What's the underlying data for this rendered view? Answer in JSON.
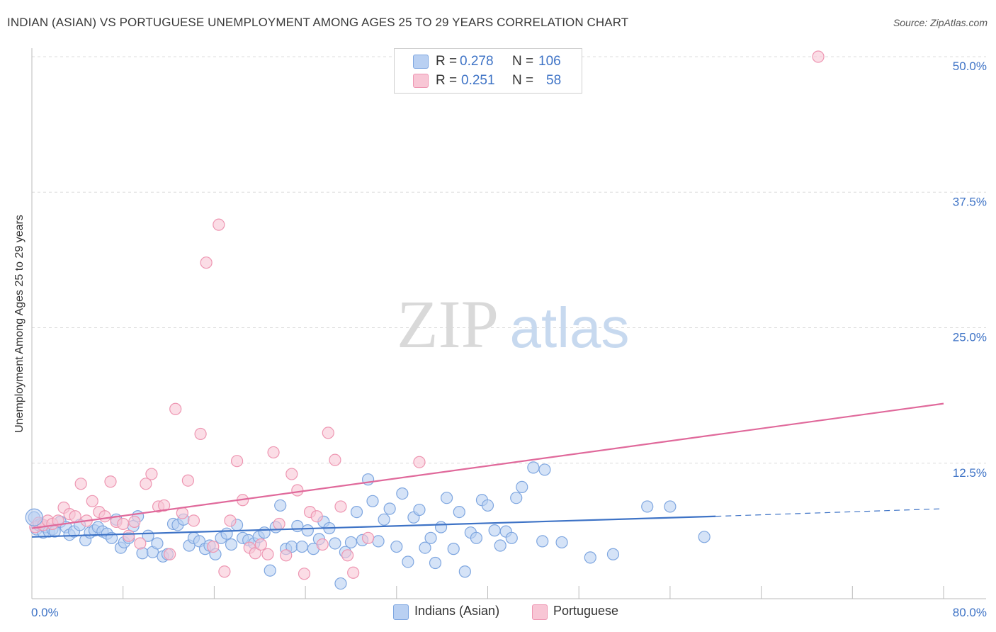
{
  "title": "INDIAN (ASIAN) VS PORTUGUESE UNEMPLOYMENT AMONG AGES 25 TO 29 YEARS CORRELATION CHART",
  "source": "Source: ZipAtlas.com",
  "watermark": {
    "zip": "ZIP",
    "atlas": "atlas"
  },
  "legend": {
    "r_label": "R =",
    "n_label": "N =",
    "rows": [
      {
        "r": "0.278",
        "n": "106",
        "swatch_fill": "#b9d0f2",
        "swatch_stroke": "#7ea6e0"
      },
      {
        "r": "0.251",
        "n": "58",
        "swatch_fill": "#f8c6d5",
        "swatch_stroke": "#ee96b2"
      }
    ]
  },
  "bottom_legend": [
    {
      "label": "Indians (Asian)",
      "fill": "#b9d0f2",
      "stroke": "#7ea6e0"
    },
    {
      "label": "Portuguese",
      "fill": "#f8c6d5",
      "stroke": "#ee96b2"
    }
  ],
  "chart_data": {
    "type": "scatter",
    "title": "INDIAN (ASIAN) VS PORTUGUESE UNEMPLOYMENT AMONG AGES 25 TO 29 YEARS CORRELATION CHART",
    "xlabel": "",
    "ylabel": "Unemployment Among Ages 25 to 29 years",
    "xlim": [
      0,
      80
    ],
    "ylim": [
      0,
      50
    ],
    "x_tick_labels": [
      "0.0%",
      "80.0%"
    ],
    "y_tick_values": [
      12.5,
      25,
      37.5,
      50
    ],
    "y_tick_labels": [
      "12.5%",
      "25.0%",
      "37.5%",
      "50.0%"
    ],
    "grid": "horizontal dashed",
    "series": [
      {
        "name": "Indians (Asian)",
        "color": "#3e73c6",
        "fill": "#b9d0f2",
        "stroke": "#7ea6e0",
        "trend": {
          "x0": 0,
          "y0": 5.7,
          "x1": 60,
          "y1": 7.6,
          "dash_to_x": 80,
          "dash_to_y": 8.3
        },
        "points": [
          [
            0.2,
            7.5
          ],
          [
            0.4,
            6.4
          ],
          [
            0.6,
            6.8
          ],
          [
            0.8,
            6.9
          ],
          [
            1.0,
            6.1
          ],
          [
            1.2,
            6.6
          ],
          [
            1.5,
            6.2
          ],
          [
            1.8,
            6.4
          ],
          [
            2.0,
            6.2
          ],
          [
            2.5,
            7.1
          ],
          [
            3.0,
            6.6
          ],
          [
            3.3,
            5.9
          ],
          [
            3.7,
            6.2
          ],
          [
            4.2,
            6.8
          ],
          [
            4.7,
            5.4
          ],
          [
            5.1,
            6.1
          ],
          [
            5.5,
            6.3
          ],
          [
            5.8,
            6.6
          ],
          [
            6.2,
            6.2
          ],
          [
            6.6,
            6.0
          ],
          [
            7.0,
            5.6
          ],
          [
            7.4,
            7.3
          ],
          [
            7.8,
            4.7
          ],
          [
            8.1,
            5.2
          ],
          [
            8.5,
            5.6
          ],
          [
            8.9,
            6.7
          ],
          [
            9.3,
            7.6
          ],
          [
            9.7,
            4.2
          ],
          [
            10.2,
            5.8
          ],
          [
            10.6,
            4.3
          ],
          [
            11.0,
            5.1
          ],
          [
            11.5,
            3.9
          ],
          [
            11.9,
            4.1
          ],
          [
            12.4,
            6.9
          ],
          [
            12.8,
            6.8
          ],
          [
            13.3,
            7.3
          ],
          [
            13.8,
            4.9
          ],
          [
            14.2,
            5.6
          ],
          [
            14.7,
            5.3
          ],
          [
            15.2,
            4.6
          ],
          [
            15.6,
            4.9
          ],
          [
            16.1,
            4.1
          ],
          [
            16.6,
            5.6
          ],
          [
            17.1,
            6.0
          ],
          [
            17.5,
            5.0
          ],
          [
            18.0,
            6.8
          ],
          [
            18.5,
            5.6
          ],
          [
            19.0,
            5.4
          ],
          [
            19.5,
            5.1
          ],
          [
            19.9,
            5.7
          ],
          [
            20.4,
            6.1
          ],
          [
            20.9,
            2.6
          ],
          [
            21.4,
            6.6
          ],
          [
            21.8,
            8.6
          ],
          [
            22.3,
            4.6
          ],
          [
            22.8,
            4.8
          ],
          [
            23.3,
            6.7
          ],
          [
            23.7,
            4.8
          ],
          [
            24.2,
            6.3
          ],
          [
            24.7,
            4.6
          ],
          [
            25.2,
            5.5
          ],
          [
            25.6,
            7.1
          ],
          [
            26.1,
            6.5
          ],
          [
            26.6,
            5.1
          ],
          [
            27.1,
            1.4
          ],
          [
            27.5,
            4.3
          ],
          [
            28.0,
            5.2
          ],
          [
            28.5,
            8.0
          ],
          [
            29.0,
            5.4
          ],
          [
            29.5,
            11.0
          ],
          [
            29.9,
            9.0
          ],
          [
            30.4,
            5.3
          ],
          [
            30.9,
            7.3
          ],
          [
            31.4,
            8.3
          ],
          [
            32.0,
            4.8
          ],
          [
            32.5,
            9.7
          ],
          [
            33.0,
            3.4
          ],
          [
            33.5,
            7.5
          ],
          [
            34.0,
            8.2
          ],
          [
            34.5,
            4.7
          ],
          [
            35.0,
            5.6
          ],
          [
            35.4,
            3.3
          ],
          [
            35.9,
            6.6
          ],
          [
            36.4,
            9.3
          ],
          [
            37.0,
            4.6
          ],
          [
            37.5,
            8.0
          ],
          [
            38.0,
            2.5
          ],
          [
            38.5,
            6.1
          ],
          [
            39.0,
            5.6
          ],
          [
            39.5,
            9.1
          ],
          [
            40.0,
            8.6
          ],
          [
            40.6,
            6.3
          ],
          [
            41.1,
            4.9
          ],
          [
            41.6,
            6.2
          ],
          [
            42.1,
            5.6
          ],
          [
            42.5,
            9.3
          ],
          [
            43.0,
            10.3
          ],
          [
            44.0,
            12.1
          ],
          [
            45.0,
            11.9
          ],
          [
            46.5,
            5.2
          ],
          [
            49.0,
            3.8
          ],
          [
            51.0,
            4.1
          ],
          [
            54.0,
            8.5
          ],
          [
            56.0,
            8.5
          ],
          [
            59.0,
            5.7
          ],
          [
            44.8,
            5.3
          ]
        ]
      },
      {
        "name": "Portuguese",
        "color": "#e0699b",
        "fill": "#f8c6d5",
        "stroke": "#ee96b2",
        "trend": {
          "x0": 0,
          "y0": 6.5,
          "x1": 80,
          "y1": 18.0
        },
        "points": [
          [
            0.3,
            6.6
          ],
          [
            0.6,
            7.0
          ],
          [
            1.0,
            6.8
          ],
          [
            1.4,
            7.2
          ],
          [
            1.8,
            6.9
          ],
          [
            2.3,
            7.2
          ],
          [
            2.8,
            8.4
          ],
          [
            3.3,
            7.8
          ],
          [
            3.8,
            7.6
          ],
          [
            4.3,
            10.6
          ],
          [
            4.8,
            7.2
          ],
          [
            5.3,
            9.0
          ],
          [
            5.9,
            8.0
          ],
          [
            6.4,
            7.6
          ],
          [
            6.9,
            10.8
          ],
          [
            7.4,
            7.1
          ],
          [
            8.0,
            6.9
          ],
          [
            8.5,
            5.8
          ],
          [
            9.0,
            7.1
          ],
          [
            9.5,
            5.1
          ],
          [
            10.0,
            10.6
          ],
          [
            10.5,
            11.5
          ],
          [
            11.1,
            8.5
          ],
          [
            11.6,
            8.6
          ],
          [
            12.1,
            4.1
          ],
          [
            12.6,
            17.5
          ],
          [
            13.2,
            7.9
          ],
          [
            13.7,
            10.9
          ],
          [
            14.2,
            7.2
          ],
          [
            14.8,
            15.2
          ],
          [
            15.3,
            31.0
          ],
          [
            15.9,
            4.8
          ],
          [
            16.4,
            34.5
          ],
          [
            16.9,
            2.5
          ],
          [
            17.4,
            7.2
          ],
          [
            18.0,
            12.7
          ],
          [
            18.5,
            9.1
          ],
          [
            19.1,
            4.7
          ],
          [
            19.6,
            4.2
          ],
          [
            20.1,
            5.0
          ],
          [
            20.7,
            4.1
          ],
          [
            21.2,
            13.5
          ],
          [
            21.7,
            6.9
          ],
          [
            22.3,
            4.0
          ],
          [
            22.8,
            11.5
          ],
          [
            23.3,
            10.0
          ],
          [
            23.9,
            2.3
          ],
          [
            24.4,
            8.0
          ],
          [
            25.0,
            7.6
          ],
          [
            25.5,
            5.0
          ],
          [
            26.0,
            15.3
          ],
          [
            26.6,
            12.8
          ],
          [
            27.1,
            8.5
          ],
          [
            27.7,
            4.0
          ],
          [
            28.2,
            2.4
          ],
          [
            29.5,
            5.6
          ],
          [
            34.0,
            12.6
          ],
          [
            69.0,
            50.0
          ]
        ]
      }
    ]
  }
}
